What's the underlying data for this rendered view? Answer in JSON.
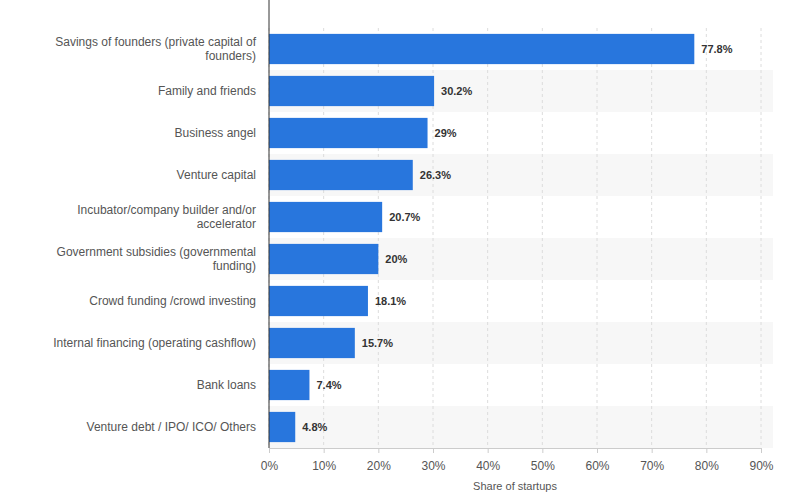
{
  "chart_data": {
    "type": "bar",
    "orientation": "horizontal",
    "categories": [
      "Savings of founders (private capital of founders)",
      "Family and friends",
      "Business angel",
      "Venture capital",
      "Incubator/company builder and/or accelerator",
      "Government subsidies (governmental funding)",
      "Crowd funding /crowd investing",
      "Internal financing (operating cashflow)",
      "Bank loans",
      "Venture debt / IPO/ ICO/ Others"
    ],
    "values": [
      77.8,
      30.2,
      29,
      26.3,
      20.7,
      20,
      18.1,
      15.7,
      7.4,
      4.8
    ],
    "value_labels": [
      "77.8%",
      "30.2%",
      "29%",
      "26.3%",
      "20.7%",
      "20%",
      "18.1%",
      "15.7%",
      "7.4%",
      "4.8%"
    ],
    "color": "#2876dd",
    "xlabel": "Share of startups",
    "xlim": [
      0,
      90
    ],
    "xticks": [
      {
        "value": 0,
        "label": "0%"
      },
      {
        "value": 10,
        "label": "10%"
      },
      {
        "value": 20,
        "label": "20%"
      },
      {
        "value": 30,
        "label": "30%"
      },
      {
        "value": 40,
        "label": "40%"
      },
      {
        "value": 50,
        "label": "50%"
      },
      {
        "value": 60,
        "label": "60%"
      },
      {
        "value": 70,
        "label": "70%"
      },
      {
        "value": 80,
        "label": "80%"
      },
      {
        "value": 90,
        "label": "90%"
      }
    ],
    "grid": true,
    "data_labels": true
  }
}
